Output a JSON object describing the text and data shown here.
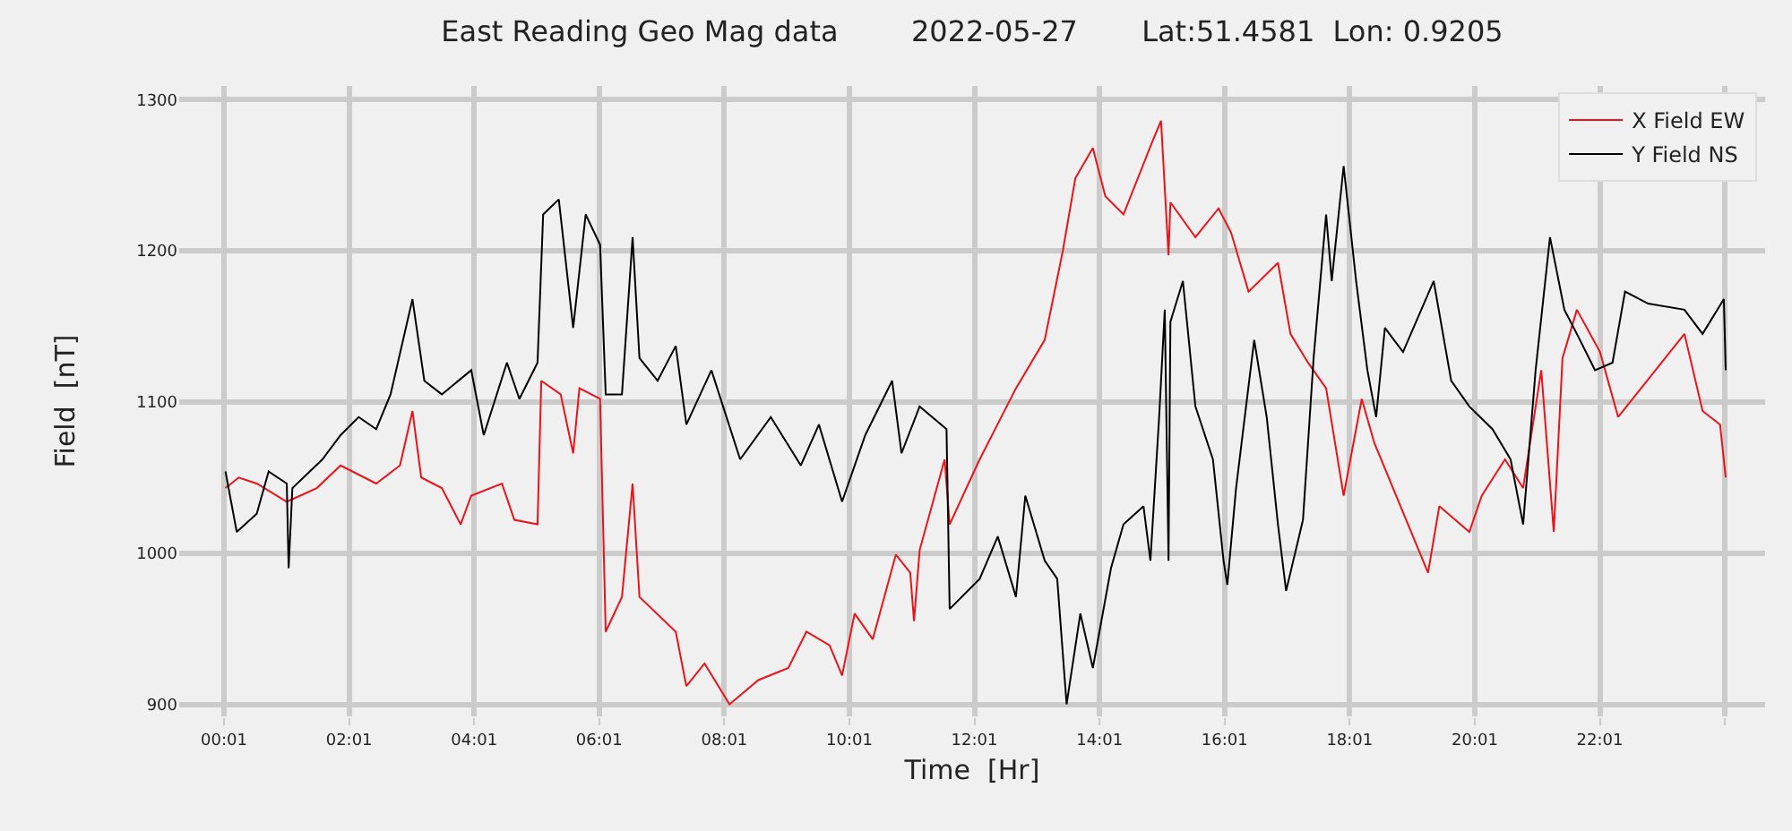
{
  "chart_data": {
    "type": "line",
    "title": "East Reading Geo Mag data        2022-05-27       Lat:51.4581  Lon: 0.9205",
    "xlabel": "Time  [Hr]",
    "ylabel": "Field  [nT]",
    "xlim": [
      -0.7,
      24.66
    ],
    "ylim": [
      892,
      1309
    ],
    "xticks": [
      {
        "value": 0.0167,
        "label": "00:01"
      },
      {
        "value": 2.0167,
        "label": "02:01"
      },
      {
        "value": 4.0167,
        "label": "04:01"
      },
      {
        "value": 6.0167,
        "label": "06:01"
      },
      {
        "value": 8.0167,
        "label": "08:01"
      },
      {
        "value": 10.0167,
        "label": "10:01"
      },
      {
        "value": 12.0167,
        "label": "12:01"
      },
      {
        "value": 14.0167,
        "label": "14:01"
      },
      {
        "value": 16.0167,
        "label": "16:01"
      },
      {
        "value": 18.0167,
        "label": "18:01"
      },
      {
        "value": 20.0167,
        "label": "20:01"
      },
      {
        "value": 22.0167,
        "label": "22:01"
      },
      {
        "value": 24.0167,
        "label": null
      }
    ],
    "yticks": [
      900,
      1000,
      1100,
      1200,
      1300
    ],
    "grid": true,
    "legend": "top right",
    "marker": "none",
    "line_style": "solid",
    "series": [
      {
        "name": "X Field EW",
        "color": "#e8141a",
        "x": [
          0.04,
          0.25,
          0.54,
          1.02,
          1.5,
          1.88,
          2.45,
          2.83,
          3.03,
          3.17,
          3.5,
          3.8,
          3.97,
          4.46,
          4.66,
          5.03,
          5.09,
          5.4,
          5.6,
          5.7,
          6.03,
          6.12,
          6.38,
          6.55,
          6.66,
          7.24,
          7.41,
          7.7,
          8.1,
          8.56,
          9.04,
          9.33,
          9.7,
          9.9,
          10.1,
          10.39,
          10.76,
          10.99,
          11.05,
          11.14,
          11.54,
          11.62,
          12.1,
          12.68,
          13.14,
          13.43,
          13.63,
          13.91,
          14.11,
          14.4,
          14.86,
          15.0,
          15.12,
          15.15,
          15.55,
          15.92,
          16.12,
          16.4,
          16.87,
          17.07,
          17.35,
          17.64,
          17.92,
          18.21,
          18.41,
          19.07,
          19.27,
          19.45,
          19.93,
          20.13,
          20.5,
          20.79,
          21.08,
          21.28,
          21.42,
          21.65,
          22.02,
          22.31,
          23.37,
          23.66,
          23.94,
          24.03
        ],
        "values": [
          1043,
          1050,
          1046,
          1034,
          1043,
          1058,
          1046,
          1058,
          1094,
          1050,
          1043,
          1019,
          1038,
          1046,
          1022,
          1019,
          1114,
          1105,
          1066,
          1109,
          1102,
          948,
          971,
          1046,
          971,
          948,
          912,
          927,
          900,
          916,
          924,
          948,
          939,
          919,
          960,
          943,
          999,
          987,
          955,
          1002,
          1062,
          1019,
          1062,
          1109,
          1141,
          1200,
          1248,
          1268,
          1236,
          1224,
          1272,
          1286,
          1197,
          1232,
          1209,
          1228,
          1212,
          1173,
          1192,
          1145,
          1126,
          1109,
          1038,
          1102,
          1073,
          1007,
          987,
          1031,
          1014,
          1038,
          1062,
          1043,
          1121,
          1014,
          1129,
          1161,
          1133,
          1090,
          1145,
          1094,
          1085,
          1050
        ]
      },
      {
        "name": "Y Field NS",
        "color": "#000000",
        "x": [
          0.04,
          0.22,
          0.54,
          0.73,
          1.02,
          1.05,
          1.11,
          1.59,
          1.88,
          2.17,
          2.45,
          2.68,
          3.03,
          3.22,
          3.5,
          3.97,
          4.17,
          4.54,
          4.74,
          5.03,
          5.12,
          5.37,
          5.6,
          5.8,
          6.03,
          6.12,
          6.38,
          6.55,
          6.66,
          6.95,
          7.24,
          7.41,
          7.81,
          8.27,
          8.76,
          9.24,
          9.53,
          9.9,
          10.27,
          10.7,
          10.85,
          11.14,
          11.57,
          11.62,
          12.1,
          12.39,
          12.68,
          12.83,
          13.14,
          13.34,
          13.49,
          13.71,
          13.91,
          14.2,
          14.4,
          14.72,
          14.83,
          14.97,
          15.06,
          15.12,
          15.15,
          15.35,
          15.55,
          15.83,
          16.0,
          16.06,
          16.2,
          16.49,
          16.69,
          16.87,
          17.0,
          17.27,
          17.44,
          17.64,
          17.73,
          17.92,
          18.12,
          18.3,
          18.44,
          18.58,
          18.87,
          19.36,
          19.64,
          19.93,
          20.3,
          20.59,
          20.79,
          20.99,
          21.22,
          21.45,
          21.65,
          21.94,
          22.22,
          22.42,
          22.79,
          23.37,
          23.66,
          24.0,
          24.03
        ],
        "values": [
          1054,
          1014,
          1026,
          1054,
          1046,
          990,
          1043,
          1062,
          1078,
          1090,
          1082,
          1105,
          1168,
          1114,
          1105,
          1121,
          1078,
          1126,
          1102,
          1126,
          1224,
          1234,
          1149,
          1224,
          1204,
          1105,
          1105,
          1209,
          1129,
          1114,
          1137,
          1085,
          1121,
          1062,
          1090,
          1058,
          1085,
          1034,
          1078,
          1114,
          1066,
          1097,
          1082,
          963,
          983,
          1011,
          971,
          1038,
          995,
          983,
          900,
          960,
          924,
          990,
          1019,
          1031,
          995,
          1090,
          1161,
          995,
          1153,
          1180,
          1097,
          1062,
          995,
          979,
          1043,
          1141,
          1090,
          1019,
          975,
          1022,
          1129,
          1224,
          1180,
          1256,
          1180,
          1121,
          1090,
          1149,
          1133,
          1180,
          1114,
          1097,
          1082,
          1062,
          1019,
          1121,
          1209,
          1161,
          1145,
          1121,
          1126,
          1173,
          1165,
          1161,
          1145,
          1168,
          1121
        ]
      }
    ]
  }
}
